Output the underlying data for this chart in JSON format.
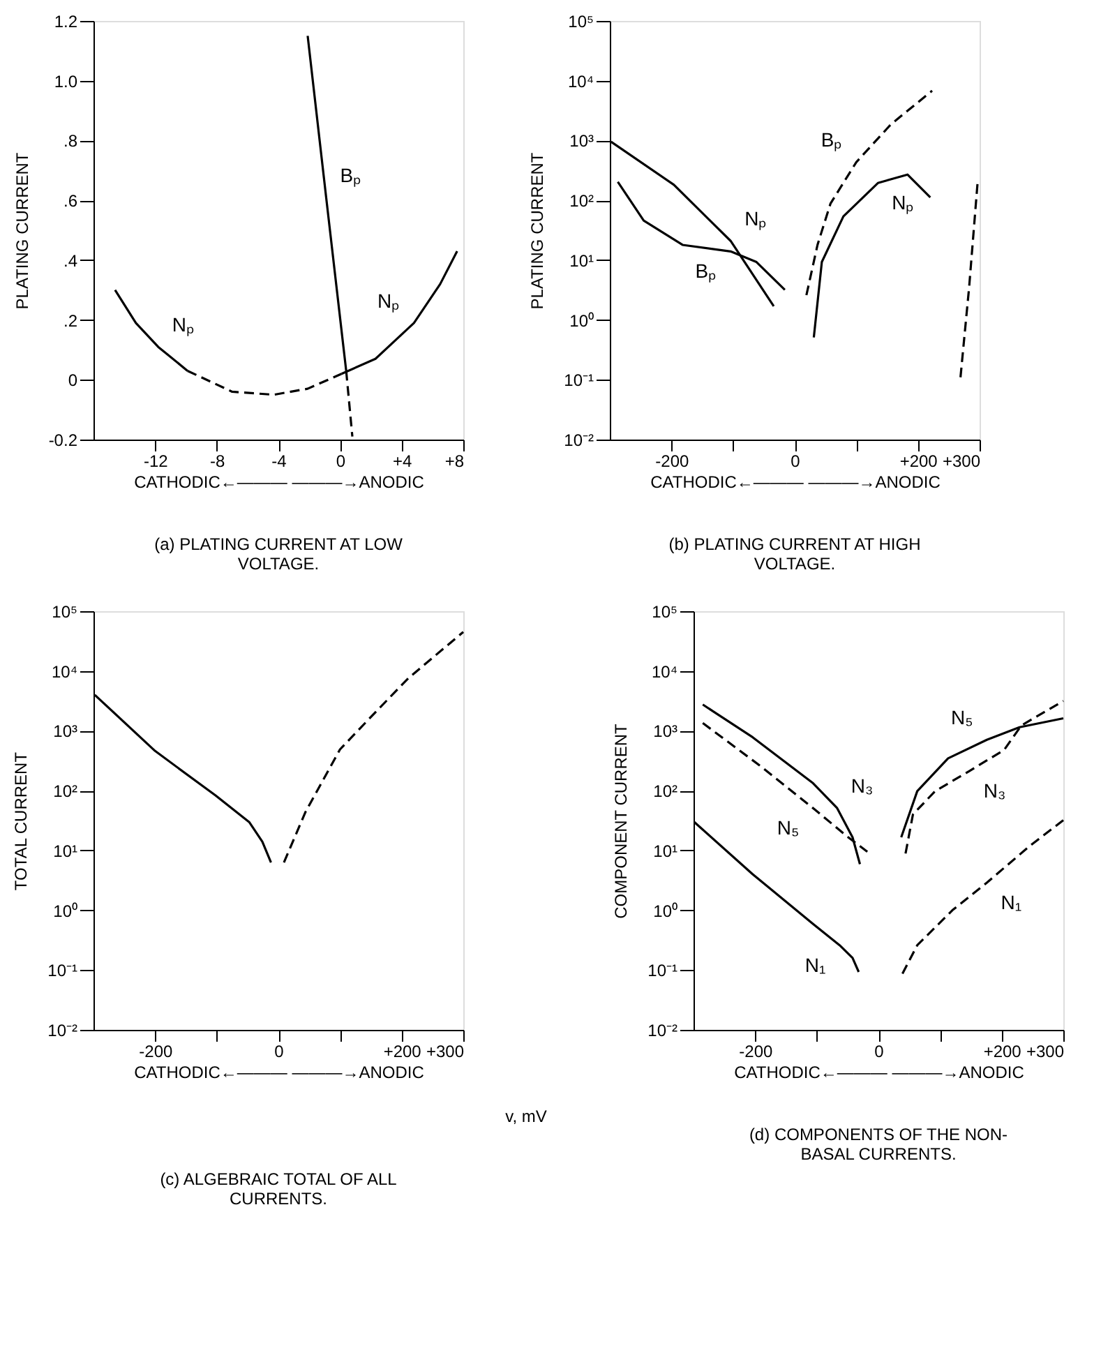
{
  "chart_data": [
    {
      "type": "line",
      "title": "(a) PLATING CURRENT AT LOW VOLTAGE.",
      "xlabel": "CATHODIC←———  ———→ANODIC",
      "ylabel": "PLATING CURRENT",
      "xlim": [
        -16,
        8
      ],
      "xticks": [
        -12,
        -8,
        -4,
        0,
        {
          "value": 4,
          "label": "+4"
        },
        {
          "value": 8,
          "label": "+8"
        }
      ],
      "ylim": [
        -0.2,
        1.2
      ],
      "yticks": [
        {
          "value": -0.2,
          "label": "-0.2"
        },
        0,
        {
          "value": 0.2,
          "label": ".2"
        },
        {
          "value": 0.4,
          "label": ".4"
        },
        {
          "value": 0.6,
          "label": ".6"
        },
        {
          "value": 0.8,
          "label": ".8"
        },
        {
          "value": 1.0,
          "label": "1.0"
        },
        {
          "value": 1.2,
          "label": "1.2"
        }
      ],
      "series": [
        {
          "name": "Nₚ",
          "color": "#000000",
          "line_style": "solid",
          "x": [
            -14.6,
            -13.25,
            -11.8,
            -9.9
          ],
          "values": [
            0.3,
            0.19,
            0.11,
            0.03
          ]
        },
        {
          "color": "#000000",
          "line_style": "dashed",
          "x": [
            -9.9,
            -7,
            -4.3,
            -2.1,
            0.1
          ],
          "values": [
            0.03,
            -0.04,
            -0.05,
            -0.03,
            0.02
          ]
        },
        {
          "name": "Nₚ",
          "color": "#000000",
          "line_style": "solid",
          "x": [
            0.1,
            2.3,
            4.8,
            6.5,
            7.6
          ],
          "values": [
            0.02,
            0.07,
            0.19,
            0.32,
            0.43
          ]
        },
        {
          "name": "Bₚ",
          "color": "#000000",
          "line_style": "solid",
          "x": [
            -2.1,
            -0.9,
            0.4
          ],
          "values": [
            1.15,
            0.61,
            0.03
          ]
        },
        {
          "color": "#000000",
          "line_style": "dashed",
          "x": [
            0.4,
            0.8
          ],
          "values": [
            0.03,
            -0.19
          ]
        }
      ]
    },
    {
      "type": "line",
      "log": "y",
      "title": "(b) PLATING CURRENT AT HIGH VOLTAGE.",
      "xlabel": "CATHODIC←———  ———→ANODIC",
      "ylabel": "PLATING CURRENT",
      "xlim": [
        -300,
        300
      ],
      "xticks": [
        -200,
        {
          "value": -100,
          "label": null
        },
        0,
        {
          "value": 100,
          "label": null
        },
        {
          "value": 200,
          "label": "+200"
        },
        {
          "value": 300,
          "label": "+300"
        }
      ],
      "ylim": [
        0.01,
        100000
      ],
      "yticks": [
        {
          "value": 0.01,
          "label": "10⁻²"
        },
        {
          "value": 0.1,
          "label": "10⁻¹"
        },
        {
          "value": 1,
          "label": "10⁰"
        },
        {
          "value": 10,
          "label": "10¹"
        },
        {
          "value": 100,
          "label": "10²"
        },
        {
          "value": 1000,
          "label": "10³"
        },
        {
          "value": 10000,
          "label": "10⁴"
        },
        {
          "value": 100000,
          "label": "10⁵"
        }
      ],
      "series": [
        {
          "name": "Nₚ",
          "color": "#000000",
          "line_style": "solid",
          "x": [
            -298,
            -196,
            -104,
            -34
          ],
          "values": [
            955,
            182,
            21,
            1.7
          ]
        },
        {
          "name": "Bₚ",
          "color": "#000000",
          "line_style": "solid",
          "x": [
            -287,
            -245,
            -182,
            -104,
            -62,
            -16
          ],
          "values": [
            204,
            46,
            18,
            14,
            9.3,
            3.2
          ]
        },
        {
          "name": "Bₚ",
          "color": "#000000",
          "line_style": "dashed",
          "x": [
            19,
            37,
            58,
            100,
            156,
            223
          ],
          "values": [
            2.6,
            18,
            88,
            436,
            1860,
            6800
          ]
        },
        {
          "name": "Nₚ",
          "color": "#000000",
          "line_style": "solid",
          "x": [
            31,
            44,
            79,
            135,
            183,
            220
          ],
          "values": [
            0.51,
            9.3,
            54,
            195,
            270,
            112
          ]
        },
        {
          "color": "#000000",
          "line_style": "dashed",
          "x": [
            269,
            283,
            297
          ],
          "values": [
            0.11,
            3.5,
            214
          ]
        }
      ]
    },
    {
      "type": "line",
      "log": "y",
      "title": "(c) ALGEBRAIC TOTAL OF ALL CURRENTS.",
      "xlabel": "CATHODIC←———  ———→ANODIC",
      "ylabel": "TOTAL CURRENT",
      "xlim": [
        -300,
        300
      ],
      "xticks": [
        -200,
        {
          "value": -100,
          "label": null
        },
        0,
        {
          "value": 100,
          "label": null
        },
        {
          "value": 200,
          "label": "+200"
        },
        {
          "value": 300,
          "label": "+300"
        }
      ],
      "ylim": [
        0.01,
        100000
      ],
      "yticks": [
        {
          "value": 0.01,
          "label": "10⁻²"
        },
        {
          "value": 0.1,
          "label": "10⁻¹"
        },
        {
          "value": 1,
          "label": "10⁰"
        },
        {
          "value": 10,
          "label": "10¹"
        },
        {
          "value": 100,
          "label": "10²"
        },
        {
          "value": 1000,
          "label": "10³"
        },
        {
          "value": 10000,
          "label": "10⁴"
        },
        {
          "value": 100000,
          "label": "10⁵"
        }
      ],
      "series": [
        {
          "color": "#000000",
          "line_style": "solid",
          "x": [
            -298,
            -200,
            -102,
            -47,
            -26,
            -12
          ],
          "values": [
            4000,
            460,
            83,
            29.5,
            14,
            6.3
          ]
        },
        {
          "color": "#000000",
          "line_style": "dashed",
          "x": [
            9,
            44,
            100,
            162,
            211,
            300
          ],
          "values": [
            6.3,
            44,
            490,
            2290,
            7600,
            45000
          ]
        }
      ],
      "annotations": [
        "v, mV"
      ]
    },
    {
      "type": "line",
      "log": "y",
      "title": "(d) COMPONENTS OF THE NON-BASAL CURRENTS.",
      "xlabel": "CATHODIC←———  ———→ANODIC",
      "ylabel": "COMPONENT CURRENT",
      "xlim": [
        -300,
        300
      ],
      "xticks": [
        -200,
        {
          "value": -100,
          "label": null
        },
        0,
        {
          "value": 100,
          "label": null
        },
        {
          "value": 200,
          "label": "+200"
        },
        {
          "value": 300,
          "label": "+300"
        }
      ],
      "ylim": [
        0.01,
        100000
      ],
      "yticks": [
        {
          "value": 0.01,
          "label": "10⁻²"
        },
        {
          "value": 0.1,
          "label": "10⁻¹"
        },
        {
          "value": 1,
          "label": "10⁰"
        },
        {
          "value": 10,
          "label": "10¹"
        },
        {
          "value": 100,
          "label": "10²"
        },
        {
          "value": 1000,
          "label": "10³"
        },
        {
          "value": 10000,
          "label": "10⁴"
        },
        {
          "value": 100000,
          "label": "10⁵"
        }
      ],
      "series": [
        {
          "name": "N₃",
          "color": "#000000",
          "line_style": "solid",
          "x": [
            -285,
            -204,
            -106,
            -67,
            -42,
            -30
          ],
          "values": [
            2750,
            780,
            133,
            51,
            16.6,
            5.9
          ]
        },
        {
          "name": "N₅",
          "color": "#000000",
          "line_style": "dashed",
          "x": [
            -285,
            -190,
            -106,
            -49,
            -18
          ],
          "values": [
            1350,
            251,
            51,
            16.6,
            9.5
          ]
        },
        {
          "name": "N₁",
          "color": "#000000",
          "line_style": "solid",
          "x": [
            -299,
            -204,
            -106,
            -63,
            -42,
            -32
          ],
          "values": [
            30,
            4,
            0.59,
            0.26,
            0.16,
            0.093
          ]
        },
        {
          "name": "N₅",
          "color": "#000000",
          "line_style": "solid",
          "x": [
            37,
            63,
            113,
            176,
            229,
            300
          ],
          "values": [
            16.6,
            98,
            347,
            708,
            1150,
            1620
          ]
        },
        {
          "name": "N₃",
          "color": "#000000",
          "line_style": "dashed",
          "x": [
            44,
            56,
            92,
            148,
            204,
            232,
            300
          ],
          "values": [
            8.9,
            40,
            98,
            214,
            480,
            1230,
            3160
          ]
        },
        {
          "name": "N₁",
          "color": "#000000",
          "line_style": "dashed",
          "x": [
            39,
            63,
            120,
            176,
            246,
            300
          ],
          "values": [
            0.087,
            0.26,
            1.0,
            2.9,
            12,
            32
          ]
        }
      ]
    }
  ]
}
